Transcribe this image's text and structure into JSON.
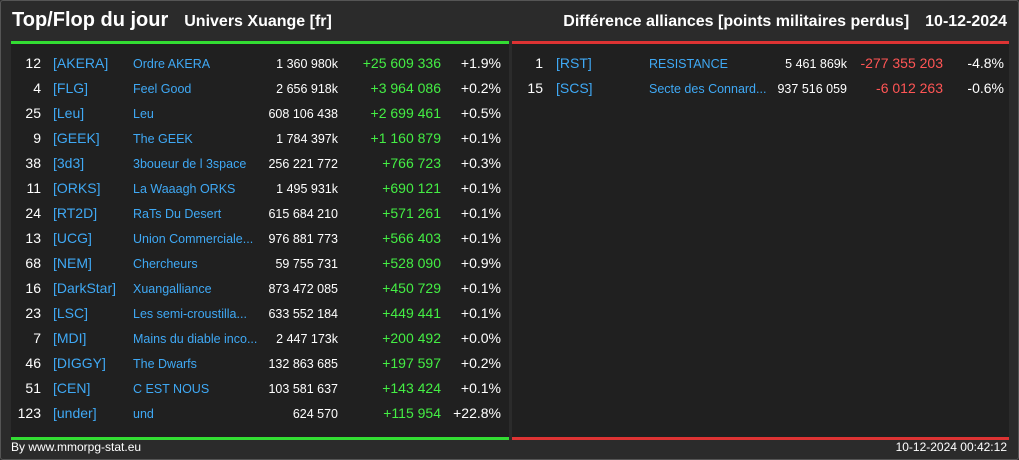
{
  "header": {
    "title": "Top/Flop du jour",
    "subtitle": "Univers Xuange [fr]",
    "metric": "Différence alliances [points militaires perdus]",
    "date": "10-12-2024"
  },
  "top": [
    {
      "rank": "12",
      "tag": "[AKERA]",
      "name": "Ordre AKERA",
      "total": "1 360 980k",
      "diff": "+25 609 336",
      "pct": "+1.9%"
    },
    {
      "rank": "4",
      "tag": "[FLG]",
      "name": "Feel Good",
      "total": "2 656 918k",
      "diff": "+3 964 086",
      "pct": "+0.2%"
    },
    {
      "rank": "25",
      "tag": "[Leu]",
      "name": "Leu",
      "total": "608 106 438",
      "diff": "+2 699 461",
      "pct": "+0.5%"
    },
    {
      "rank": "9",
      "tag": "[GEEK]",
      "name": "The GEEK",
      "total": "1 784 397k",
      "diff": "+1 160 879",
      "pct": "+0.1%"
    },
    {
      "rank": "38",
      "tag": "[3d3]",
      "name": "3boueur de l 3space",
      "total": "256 221 772",
      "diff": "+766 723",
      "pct": "+0.3%"
    },
    {
      "rank": "11",
      "tag": "[ORKS]",
      "name": "La Waaagh ORKS",
      "total": "1 495 931k",
      "diff": "+690 121",
      "pct": "+0.1%"
    },
    {
      "rank": "24",
      "tag": "[RT2D]",
      "name": "RaTs Du Desert",
      "total": "615 684 210",
      "diff": "+571 261",
      "pct": "+0.1%"
    },
    {
      "rank": "13",
      "tag": "[UCG]",
      "name": "Union Commerciale...",
      "total": "976 881 773",
      "diff": "+566 403",
      "pct": "+0.1%"
    },
    {
      "rank": "68",
      "tag": "[NEM]",
      "name": "Chercheurs",
      "total": "59 755 731",
      "diff": "+528 090",
      "pct": "+0.9%"
    },
    {
      "rank": "16",
      "tag": "[DarkStar]",
      "name": "Xuangalliance",
      "total": "873 472 085",
      "diff": "+450 729",
      "pct": "+0.1%"
    },
    {
      "rank": "23",
      "tag": "[LSC]",
      "name": "Les semi-croustilla...",
      "total": "633 552 184",
      "diff": "+449 441",
      "pct": "+0.1%"
    },
    {
      "rank": "7",
      "tag": "[MDI]",
      "name": "Mains du diable inco...",
      "total": "2 447 173k",
      "diff": "+200 492",
      "pct": "+0.0%"
    },
    {
      "rank": "46",
      "tag": "[DIGGY]",
      "name": "The Dwarfs",
      "total": "132 863 685",
      "diff": "+197 597",
      "pct": "+0.2%"
    },
    {
      "rank": "51",
      "tag": "[CEN]",
      "name": "C EST NOUS",
      "total": "103 581 637",
      "diff": "+143 424",
      "pct": "+0.1%"
    },
    {
      "rank": "123",
      "tag": "[under]",
      "name": "und",
      "total": "624 570",
      "diff": "+115 954",
      "pct": "+22.8%"
    }
  ],
  "flop": [
    {
      "rank": "1",
      "tag": "[RST]",
      "name": "RESISTANCE",
      "total": "5 461 869k",
      "diff": "-277 355 203",
      "pct": "-4.8%"
    },
    {
      "rank": "15",
      "tag": "[SCS]",
      "name": "Secte des Connard...",
      "total": "937 516 059",
      "diff": "-6 012 263",
      "pct": "-0.6%"
    }
  ],
  "footer": {
    "source": "By www.mmorpg-stat.eu",
    "timestamp": "10-12-2024 00:42:12"
  },
  "colors": {
    "positive": "#44ee44",
    "negative": "#ff5555",
    "tag": "#3fa9f5",
    "top_accent": "#33dd33",
    "flop_accent": "#dd3333"
  }
}
